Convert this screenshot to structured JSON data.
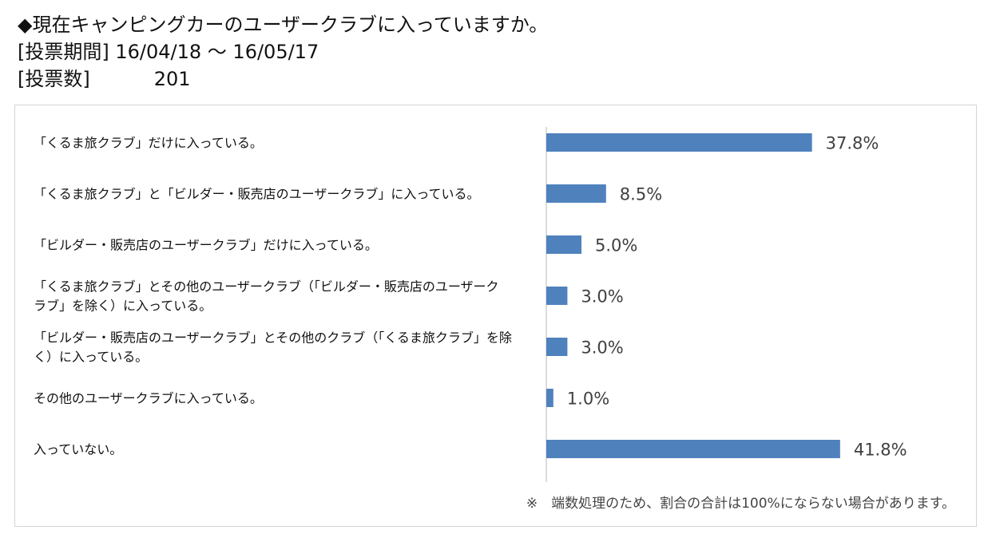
{
  "header": {
    "question": "◆現在キャンピングカーのユーザークラブに入っていますか。",
    "period_label": "[投票期間]",
    "period_value": "16/04/18 ～ 16/05/17",
    "votes_label": "[投票数]",
    "votes_value": "201"
  },
  "note": "※　端数処理のため、割合の合計は100%にならない場合があります。",
  "chart_data": {
    "type": "bar",
    "orientation": "horizontal",
    "categories": [
      [
        "「くるま旅クラブ」だけに入っている。"
      ],
      [
        "「くるま旅クラブ」と「ビルダー・販売店のユーザークラブ」に入っている。"
      ],
      [
        "「ビルダー・販売店のユーザークラブ」だけに入っている。"
      ],
      [
        "「くるま旅クラブ」とその他のユーザークラブ（「ビルダー・販売店のユーザーク",
        "ラブ」を除く）に入っている。"
      ],
      [
        "「ビルダー・販売店のユーザークラブ」とその他のクラブ（「くるま旅クラブ」を除",
        "く）に入っている。"
      ],
      [
        "その他のユーザークラブに入っている。"
      ],
      [
        "入っていない。"
      ]
    ],
    "values": [
      37.8,
      8.5,
      5.0,
      3.0,
      3.0,
      1.0,
      41.8
    ],
    "labels": [
      "37.8%",
      "8.5%",
      "5.0%",
      "3.0%",
      "3.0%",
      "1.0%",
      "41.8%"
    ],
    "bar_color": "#4f81bd",
    "xlim": [
      0,
      50
    ],
    "grid": false,
    "legend": "none"
  }
}
